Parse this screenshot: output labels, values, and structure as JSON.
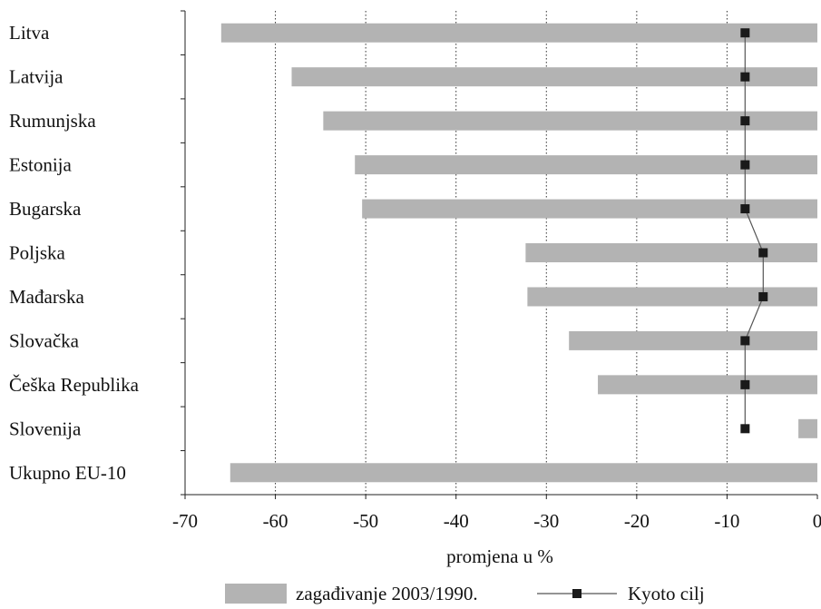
{
  "chart_data": {
    "type": "bar",
    "orientation": "horizontal",
    "title": "",
    "xlabel": "promjena u %",
    "ylabel": "",
    "xlim": [
      -70,
      0
    ],
    "xticks": [
      -70,
      -60,
      -50,
      -40,
      -30,
      -20,
      -10,
      0
    ],
    "grid": "vertical dotted",
    "categories": [
      "Litva",
      "Latvija",
      "Rumunjska",
      "Estonija",
      "Bugarska",
      "Poljska",
      "Mađarska",
      "Slovačka",
      "Češka Republika",
      "Slovenija",
      "Ukupno EU-10"
    ],
    "series": [
      {
        "name": "zagađivanje 2003/1990.",
        "type": "bar",
        "color": "#b3b3b3",
        "values": [
          -66,
          -58.2,
          -54.7,
          -51.2,
          -50.4,
          -32.3,
          -32.1,
          -27.5,
          -24.3,
          -2.1,
          -65
        ]
      },
      {
        "name": "Kyoto cilj",
        "type": "line-marker",
        "color": "#1a1a1a",
        "values": [
          -8,
          -8,
          -8,
          -8,
          -8,
          -6,
          -6,
          -8,
          -8,
          -8,
          null
        ]
      }
    ],
    "legend_position": "bottom"
  }
}
